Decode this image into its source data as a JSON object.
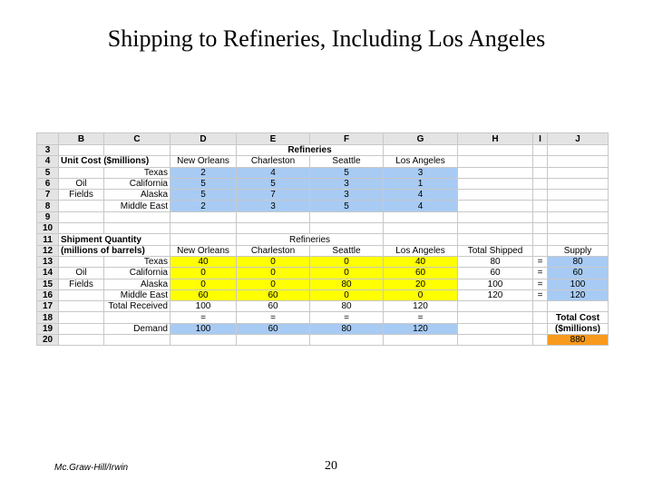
{
  "title": "Shipping to Refineries, Including Los Angeles",
  "columns": [
    "B",
    "C",
    "D",
    "E",
    "F",
    "G",
    "H",
    "I",
    "J"
  ],
  "rows": {
    "r3": {
      "num": "3",
      "refineries": "Refineries"
    },
    "r4": {
      "num": "4",
      "label": "Unit Cost ($millions)",
      "d": "New Orleans",
      "e": "Charleston",
      "f": "Seattle",
      "g": "Los Angeles"
    },
    "r5": {
      "num": "5",
      "c": "Texas",
      "d": "2",
      "e": "4",
      "f": "5",
      "g": "3"
    },
    "r6": {
      "num": "6",
      "b": "Oil",
      "c": "California",
      "d": "5",
      "e": "5",
      "f": "3",
      "g": "1"
    },
    "r7": {
      "num": "7",
      "b": "Fields",
      "c": "Alaska",
      "d": "5",
      "e": "7",
      "f": "3",
      "g": "4"
    },
    "r8": {
      "num": "8",
      "c": "Middle East",
      "d": "2",
      "e": "3",
      "f": "5",
      "g": "4"
    },
    "r9": {
      "num": "9"
    },
    "r10": {
      "num": "10"
    },
    "r11": {
      "num": "11",
      "label": "Shipment Quantity",
      "refineries": "Refineries"
    },
    "r12": {
      "num": "12",
      "label": "(millions of barrels)",
      "d": "New Orleans",
      "e": "Charleston",
      "f": "Seattle",
      "g": "Los Angeles",
      "h": "Total Shipped",
      "j": "Supply"
    },
    "r13": {
      "num": "13",
      "c": "Texas",
      "d": "40",
      "e": "0",
      "f": "0",
      "g": "40",
      "h": "80",
      "i": "=",
      "j": "80"
    },
    "r14": {
      "num": "14",
      "b": "Oil",
      "c": "California",
      "d": "0",
      "e": "0",
      "f": "0",
      "g": "60",
      "h": "60",
      "i": "=",
      "j": "60"
    },
    "r15": {
      "num": "15",
      "b": "Fields",
      "c": "Alaska",
      "d": "0",
      "e": "0",
      "f": "80",
      "g": "20",
      "h": "100",
      "i": "=",
      "j": "100"
    },
    "r16": {
      "num": "16",
      "c": "Middle East",
      "d": "60",
      "e": "60",
      "f": "0",
      "g": "0",
      "h": "120",
      "i": "=",
      "j": "120"
    },
    "r17": {
      "num": "17",
      "c": "Total Received",
      "d": "100",
      "e": "60",
      "f": "80",
      "g": "120"
    },
    "r18": {
      "num": "18",
      "d": "=",
      "e": "=",
      "f": "=",
      "g": "=",
      "j": "Total Cost"
    },
    "r19": {
      "num": "19",
      "c": "Demand",
      "d": "100",
      "e": "60",
      "f": "80",
      "g": "120",
      "j": "($millions)"
    },
    "r20": {
      "num": "20",
      "j": "880"
    }
  },
  "footer": {
    "publisher": "Mc.Graw-Hill/Irwin",
    "page": "20"
  },
  "colors": {
    "blue": "#a8cbf4",
    "yellow": "#ffff00",
    "orange": "#f79a1e",
    "header": "#e4e4e4"
  }
}
